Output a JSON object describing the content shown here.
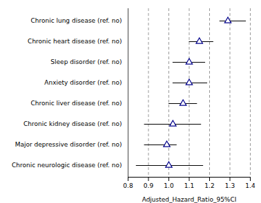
{
  "chart_data": {
    "type": "forest",
    "categories": [
      "Chronic lung disease (ref. no)",
      "Chronic heart disease (ref. no)",
      "Sleep disorder (ref. no)",
      "Anxiety disorder (ref. no)",
      "Chronic liver disease (ref. no)",
      "Chronic kidney disease (ref. no)",
      "Major depressive disorder (ref. no)",
      "Chronic neurologic disease (ref. no)"
    ],
    "values": [
      1.29,
      1.15,
      1.1,
      1.1,
      1.07,
      1.02,
      0.99,
      1.0
    ],
    "ci_low": [
      1.25,
      1.1,
      1.02,
      1.02,
      1.0,
      0.88,
      0.88,
      0.84
    ],
    "ci_high": [
      1.38,
      1.22,
      1.18,
      1.19,
      1.14,
      1.16,
      1.04,
      1.17
    ],
    "xlim": [
      0.8,
      1.4
    ],
    "xticks": [
      0.8,
      0.9,
      {
        "value": 1.0,
        "label": "1.0"
      },
      1.1,
      1.2,
      1.3,
      1.4
    ],
    "xlabel": "Adjusted_Hazard_Ratio_95%CI",
    "grid": true,
    "marker": "triangle",
    "color": "#00008B"
  }
}
